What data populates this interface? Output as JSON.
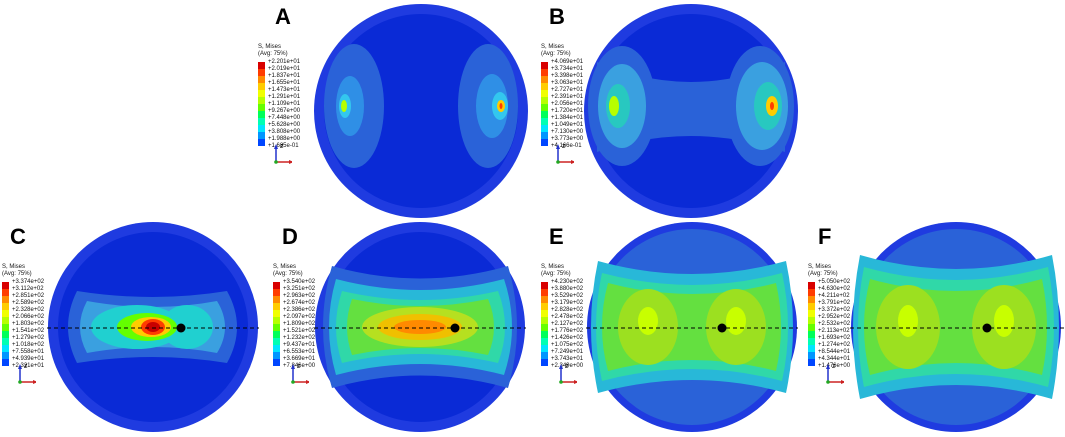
{
  "colors": {
    "contour": [
      "#d80000",
      "#ff3c00",
      "#ff8a00",
      "#ffcc00",
      "#f0ff00",
      "#b6ff00",
      "#64ff00",
      "#00ff5a",
      "#00ffb4",
      "#00e6ff",
      "#0096ff",
      "#0046ff",
      "#0000e6"
    ]
  },
  "legend_title": "S, Mises",
  "legend_subtitle": "(Avg: 75%)",
  "axis_z": "z",
  "axis_x": "x",
  "panels": [
    {
      "label": "A",
      "values": [
        "+2.201e+01",
        "+2.019e+01",
        "+1.837e+01",
        "+1.655e+01",
        "+1.473e+01",
        "+1.291e+01",
        "+1.109e+01",
        "+9.267e+00",
        "+7.448e+00",
        "+5.628e+00",
        "+3.808e+00",
        "+1.988e+00",
        "+1.685e-01"
      ]
    },
    {
      "label": "B",
      "values": [
        "+4.069e+01",
        "+3.734e+01",
        "+3.398e+01",
        "+3.063e+01",
        "+2.727e+01",
        "+2.391e+01",
        "+2.056e+01",
        "+1.720e+01",
        "+1.384e+01",
        "+1.049e+01",
        "+7.130e+00",
        "+3.773e+00",
        "+4.166e-01"
      ]
    },
    {
      "label": "C",
      "values": [
        "+3.374e+02",
        "+3.112e+02",
        "+2.851e+02",
        "+2.589e+02",
        "+2.328e+02",
        "+2.066e+02",
        "+1.803e+02",
        "+1.541e+02",
        "+1.279e+02",
        "+1.018e+02",
        "+7.558e+01",
        "+4.939e+01",
        "+2.321e+01"
      ]
    },
    {
      "label": "D",
      "values": [
        "+3.540e+02",
        "+3.251e+02",
        "+2.963e+02",
        "+2.674e+02",
        "+2.386e+02",
        "+2.097e+02",
        "+1.809e+02",
        "+1.521e+02",
        "+1.232e+02",
        "+9.437e+01",
        "+6.553e+01",
        "+3.669e+01",
        "+7.846e+00"
      ]
    },
    {
      "label": "E",
      "values": [
        "+4.230e+02",
        "+3.880e+02",
        "+3.529e+02",
        "+3.179e+02",
        "+2.828e+02",
        "+2.478e+02",
        "+2.127e+02",
        "+1.776e+02",
        "+1.426e+02",
        "+1.075e+02",
        "+7.249e+01",
        "+3.743e+01",
        "+2.349e+00"
      ]
    },
    {
      "label": "F",
      "values": [
        "+5.050e+02",
        "+4.630e+02",
        "+4.211e+02",
        "+3.791e+02",
        "+3.372e+02",
        "+2.952e+02",
        "+2.532e+02",
        "+2.113e+02",
        "+1.693e+02",
        "+1.274e+02",
        "+8.544e+01",
        "+4.344e+01",
        "+1.476e+00"
      ]
    }
  ]
}
